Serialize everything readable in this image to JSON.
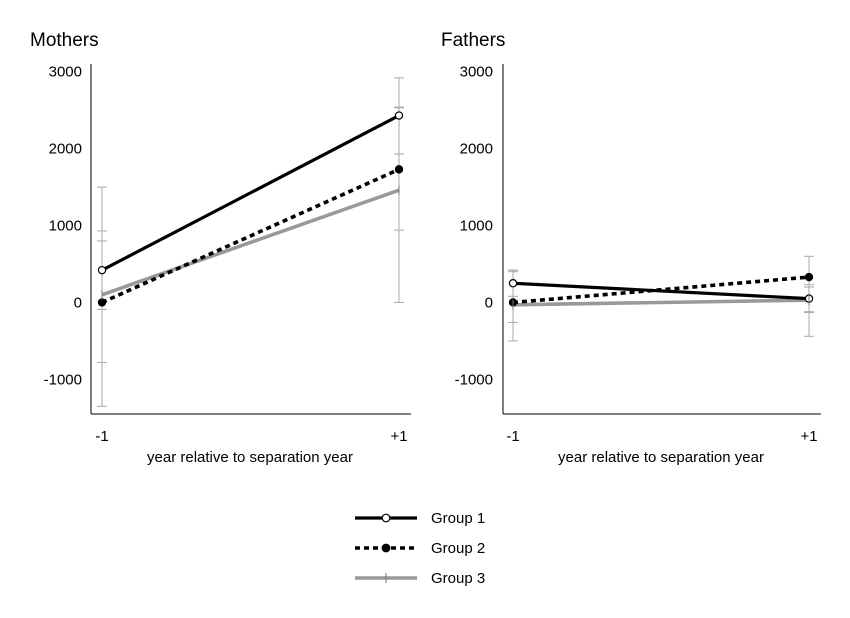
{
  "chart_data": [
    {
      "type": "line",
      "title": "Mothers",
      "xlabel": "year relative to separation year",
      "ylabel": "",
      "categories": [
        "-1",
        "+1"
      ],
      "yticks": [
        "3000",
        "2000",
        "1000",
        "0",
        "-1000"
      ],
      "ylim": [
        -1450,
        3100
      ],
      "series": [
        {
          "name": "Group 1",
          "values": [
            420,
            2430
          ],
          "err_low": [
            -90,
            1930
          ],
          "err_high": [
            930,
            2920
          ]
        },
        {
          "name": "Group 2",
          "values": [
            0,
            1730
          ],
          "err_low": [
            -1350,
            940
          ],
          "err_high": [
            1500,
            2530
          ]
        },
        {
          "name": "Group 3",
          "values": [
            100,
            1460
          ],
          "err_low": [
            -780,
            0
          ],
          "err_high": [
            800,
            2540
          ]
        }
      ]
    },
    {
      "type": "line",
      "title": "Fathers",
      "xlabel": "year relative to separation year",
      "ylabel": "",
      "categories": [
        "-1",
        "+1"
      ],
      "yticks": [
        "3000",
        "2000",
        "1000",
        "0",
        "-1000"
      ],
      "ylim": [
        -1450,
        3100
      ],
      "series": [
        {
          "name": "Group 1",
          "values": [
            250,
            50
          ],
          "err_low": [
            80,
            -120
          ],
          "err_high": [
            420,
            230
          ]
        },
        {
          "name": "Group 2",
          "values": [
            0,
            330
          ],
          "err_low": [
            -500,
            -440
          ],
          "err_high": [
            420,
            600
          ]
        },
        {
          "name": "Group 3",
          "values": [
            -30,
            30
          ],
          "err_low": [
            -260,
            -130
          ],
          "err_high": [
            400,
            200
          ]
        }
      ]
    }
  ],
  "legend": {
    "placement": "bottom-center",
    "items": [
      {
        "label": "Group 1",
        "color": "#000000",
        "dash": "solid",
        "marker": "open-circle"
      },
      {
        "label": "Group 2",
        "color": "#000000",
        "dash": "dotted",
        "marker": "filled-circle"
      },
      {
        "label": "Group 3",
        "color": "#999999",
        "dash": "solid",
        "marker": "none"
      }
    ]
  },
  "colors": {
    "group1": "#000000",
    "group2": "#000000",
    "group3": "#999999",
    "errorbar": "#aaaaaa"
  }
}
